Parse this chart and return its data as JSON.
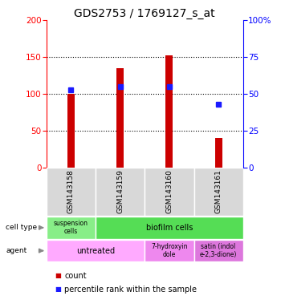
{
  "title": "GDS2753 / 1769127_s_at",
  "samples": [
    "GSM143158",
    "GSM143159",
    "GSM143160",
    "GSM143161"
  ],
  "counts": [
    100,
    135,
    152,
    40
  ],
  "percentile_ranks": [
    53,
    55,
    55,
    43
  ],
  "ylim_left": [
    0,
    200
  ],
  "ylim_right": [
    0,
    100
  ],
  "yticks_left": [
    0,
    50,
    100,
    150,
    200
  ],
  "yticks_right": [
    0,
    25,
    50,
    75,
    100
  ],
  "bar_color": "#cc0000",
  "dot_color": "#1a1aff",
  "bar_width": 0.15,
  "cell_type_susp_color": "#88ee88",
  "cell_type_bio_color": "#55dd55",
  "agent_untreated_color": "#ffaaff",
  "agent_7hydroxy_color": "#ee88ee",
  "agent_satin_color": "#dd77dd",
  "legend_count_color": "#cc0000",
  "legend_dot_color": "#1a1aff",
  "background_color": "#ffffff",
  "plot_bg_color": "#ffffff",
  "title_fontsize": 10,
  "tick_fontsize": 7.5,
  "sample_fontsize": 6.5,
  "annotation_fontsize": 7,
  "legend_fontsize": 7
}
